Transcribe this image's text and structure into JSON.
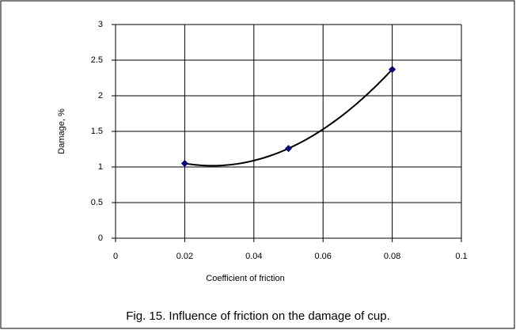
{
  "chart_data": {
    "type": "scatter",
    "x_label": "Coefficient of friction",
    "y_label": "Damage, %",
    "caption": "Fig. 15. Influence of friction on the damage of cup.",
    "x": [
      0.02,
      0.05,
      0.08
    ],
    "values": [
      1.05,
      1.26,
      2.37
    ],
    "color": "#000080",
    "trendline": "polynomial",
    "xlim": [
      0,
      0.1
    ],
    "xticks": [
      0,
      0.02,
      0.04,
      0.06,
      0.08,
      0.1
    ],
    "ylim": [
      0,
      3
    ],
    "yticks": [
      0,
      0.5,
      1,
      1.5,
      2,
      2.5,
      3
    ],
    "grid": true
  }
}
